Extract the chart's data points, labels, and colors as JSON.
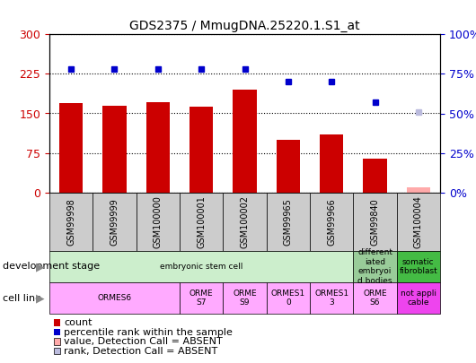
{
  "title": "GDS2375 / MmugDNA.25220.1.S1_at",
  "samples": [
    "GSM99998",
    "GSM99999",
    "GSM100000",
    "GSM100001",
    "GSM100002",
    "GSM99965",
    "GSM99966",
    "GSM99840",
    "GSM100004"
  ],
  "bar_values": [
    170,
    165,
    172,
    163,
    195,
    100,
    110,
    65,
    10
  ],
  "bar_absent": [
    false,
    false,
    false,
    false,
    false,
    false,
    false,
    false,
    true
  ],
  "rank_values": [
    78,
    78,
    78,
    78,
    78,
    70,
    70,
    57,
    51
  ],
  "rank_absent": [
    false,
    false,
    false,
    false,
    false,
    false,
    false,
    false,
    true
  ],
  "bar_color": "#cc0000",
  "bar_absent_color": "#ffaaaa",
  "rank_color": "#0000cc",
  "rank_absent_color": "#bbbbdd",
  "left_ylim": [
    0,
    300
  ],
  "left_yticks": [
    0,
    75,
    150,
    225,
    300
  ],
  "right_ylim": [
    0,
    100
  ],
  "right_yticks": [
    0,
    25,
    50,
    75,
    100
  ],
  "left_tick_color": "#cc0000",
  "right_tick_color": "#0000cc",
  "xtick_bg": "#cccccc",
  "dev_stage_groups": [
    {
      "label": "embryonic stem cell",
      "cols": [
        0,
        1,
        2,
        3,
        4,
        5,
        6
      ],
      "color": "#cceecc"
    },
    {
      "label": "different\niated\nembryoi\nd bodies",
      "cols": [
        7
      ],
      "color": "#99cc99"
    },
    {
      "label": "somatic\nfibroblast",
      "cols": [
        8
      ],
      "color": "#44bb44"
    }
  ],
  "cell_line_groups": [
    {
      "label": "ORMES6",
      "cols": [
        0,
        1,
        2
      ],
      "color": "#ffaaff"
    },
    {
      "label": "ORME\nS7",
      "cols": [
        3
      ],
      "color": "#ffaaff"
    },
    {
      "label": "ORME\nS9",
      "cols": [
        4
      ],
      "color": "#ffaaff"
    },
    {
      "label": "ORMES1\n0",
      "cols": [
        5
      ],
      "color": "#ffaaff"
    },
    {
      "label": "ORMES1\n3",
      "cols": [
        6
      ],
      "color": "#ffaaff"
    },
    {
      "label": "ORME\nS6",
      "cols": [
        7
      ],
      "color": "#ffaaff"
    },
    {
      "label": "not appli\ncable",
      "cols": [
        8
      ],
      "color": "#ee44ee"
    }
  ]
}
